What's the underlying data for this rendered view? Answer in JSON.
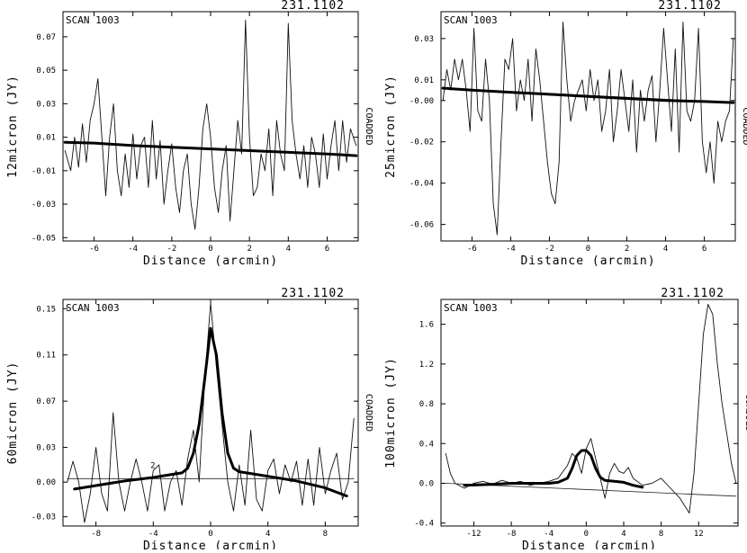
{
  "chart_data": [
    {
      "type": "line",
      "scan_label": "SCAN 1003",
      "id_label": "231.1102",
      "side_label": "COADDED",
      "xlabel": "Distance (arcmin)",
      "ylabel": "12micron (JY)",
      "xlim": [
        -7.6,
        7.6
      ],
      "ylim": [
        -0.052,
        0.085
      ],
      "xticks": [
        -6,
        -4,
        -2,
        0,
        2,
        4,
        6
      ],
      "yticks": [
        -0.05,
        -0.03,
        -0.01,
        0.01,
        0.03,
        0.05,
        0.07
      ],
      "xtick_labels": [
        "-6",
        "-4",
        "-2",
        "0",
        "2",
        "4",
        "6"
      ],
      "ytick_labels": [
        "-0.05",
        "-0.03",
        "-0.01",
        "0.01",
        "0.03",
        "0.05",
        "0.07"
      ],
      "series": [
        {
          "style": "thin",
          "x": [
            -7.5,
            -7.2,
            -7.0,
            -6.8,
            -6.6,
            -6.4,
            -6.2,
            -6.0,
            -5.8,
            -5.6,
            -5.4,
            -5.2,
            -5.0,
            -4.8,
            -4.6,
            -4.4,
            -4.2,
            -4.0,
            -3.8,
            -3.6,
            -3.4,
            -3.2,
            -3.0,
            -2.8,
            -2.6,
            -2.4,
            -2.2,
            -2.0,
            -1.8,
            -1.6,
            -1.4,
            -1.2,
            -1.0,
            -0.8,
            -0.6,
            -0.4,
            -0.2,
            0.0,
            0.2,
            0.4,
            0.6,
            0.8,
            1.0,
            1.2,
            1.4,
            1.6,
            1.8,
            2.0,
            2.2,
            2.4,
            2.6,
            2.8,
            3.0,
            3.2,
            3.4,
            3.6,
            3.8,
            4.0,
            4.2,
            4.4,
            4.6,
            4.8,
            5.0,
            5.2,
            5.4,
            5.6,
            5.8,
            6.0,
            6.2,
            6.4,
            6.6,
            6.8,
            7.0,
            7.2,
            7.5
          ],
          "y": [
            0.002,
            -0.01,
            0.01,
            -0.008,
            0.018,
            -0.005,
            0.02,
            0.03,
            0.045,
            0.01,
            -0.025,
            0.01,
            0.03,
            -0.01,
            -0.025,
            0.0,
            -0.02,
            0.012,
            -0.015,
            0.005,
            0.01,
            -0.02,
            0.02,
            -0.015,
            0.008,
            -0.03,
            -0.01,
            0.006,
            -0.02,
            -0.035,
            -0.01,
            0.0,
            -0.03,
            -0.045,
            -0.02,
            0.015,
            0.03,
            0.01,
            -0.02,
            -0.035,
            -0.01,
            0.005,
            -0.04,
            -0.01,
            0.02,
            0.0,
            0.08,
            0.01,
            -0.025,
            -0.02,
            0.0,
            -0.01,
            0.015,
            -0.025,
            0.02,
            0.0,
            -0.01,
            0.078,
            0.02,
            0.0,
            -0.015,
            0.005,
            -0.02,
            0.01,
            0.0,
            -0.02,
            0.012,
            -0.015,
            0.005,
            0.02,
            -0.01,
            0.02,
            -0.005,
            0.015,
            0.005
          ]
        },
        {
          "style": "line",
          "x": [
            -7.5,
            7.5
          ],
          "y": [
            0.007,
            -0.001
          ]
        },
        {
          "style": "thick",
          "x": [
            -7.5,
            -6,
            -4,
            -2,
            0,
            2,
            4,
            6,
            7.5
          ],
          "y": [
            0.007,
            0.0065,
            0.005,
            0.004,
            0.003,
            0.002,
            0.001,
            0.0,
            -0.001
          ]
        }
      ]
    },
    {
      "type": "line",
      "scan_label": "SCAN 1003",
      "id_label": "231.1102",
      "side_label": "COADDED",
      "xlabel": "Distance (arcmin)",
      "ylabel": "25micron (JY)",
      "xlim": [
        -7.6,
        7.6
      ],
      "ylim": [
        -0.068,
        0.043
      ],
      "xticks": [
        -6,
        -4,
        -2,
        0,
        2,
        4,
        6
      ],
      "yticks": [
        -0.06,
        -0.04,
        -0.02,
        0.0,
        0.01,
        0.03
      ],
      "xtick_labels": [
        "-6",
        "-4",
        "-2",
        "0",
        "2",
        "4",
        "6"
      ],
      "ytick_labels": [
        "-0.06",
        "-0.04",
        "-0.02",
        "-0.00",
        "0.01",
        "0.03"
      ],
      "series": [
        {
          "style": "thin",
          "x": [
            -7.5,
            -7.3,
            -7.1,
            -6.9,
            -6.7,
            -6.5,
            -6.3,
            -6.1,
            -5.9,
            -5.7,
            -5.5,
            -5.3,
            -5.1,
            -4.9,
            -4.7,
            -4.5,
            -4.3,
            -4.1,
            -3.9,
            -3.7,
            -3.5,
            -3.3,
            -3.1,
            -2.9,
            -2.7,
            -2.5,
            -2.3,
            -2.1,
            -1.9,
            -1.7,
            -1.5,
            -1.3,
            -1.1,
            -0.9,
            -0.7,
            -0.5,
            -0.3,
            -0.1,
            0.1,
            0.3,
            0.5,
            0.7,
            0.9,
            1.1,
            1.3,
            1.5,
            1.7,
            1.9,
            2.1,
            2.3,
            2.5,
            2.7,
            2.9,
            3.1,
            3.3,
            3.5,
            3.7,
            3.9,
            4.1,
            4.3,
            4.5,
            4.7,
            4.9,
            5.1,
            5.3,
            5.5,
            5.7,
            5.9,
            6.1,
            6.3,
            6.5,
            6.7,
            6.9,
            7.1,
            7.3,
            7.5
          ],
          "y": [
            0.0,
            0.015,
            0.005,
            0.02,
            0.01,
            0.02,
            0.005,
            -0.015,
            0.035,
            -0.005,
            -0.01,
            0.02,
            0.0,
            -0.05,
            -0.065,
            -0.02,
            0.02,
            0.015,
            0.03,
            -0.005,
            0.01,
            0.0,
            0.02,
            -0.01,
            0.025,
            0.01,
            -0.01,
            -0.03,
            -0.045,
            -0.05,
            -0.03,
            0.038,
            0.01,
            -0.01,
            0.0,
            0.005,
            0.01,
            -0.005,
            0.015,
            0.0,
            0.01,
            -0.015,
            -0.005,
            0.015,
            -0.02,
            -0.005,
            0.015,
            0.0,
            -0.015,
            0.01,
            -0.025,
            0.005,
            -0.01,
            0.005,
            0.012,
            -0.02,
            0.005,
            0.035,
            0.01,
            -0.015,
            0.025,
            -0.025,
            0.038,
            -0.005,
            -0.01,
            0.0,
            0.035,
            -0.02,
            -0.035,
            -0.02,
            -0.04,
            -0.01,
            -0.02,
            -0.01,
            -0.005,
            0.03
          ]
        },
        {
          "style": "line",
          "x": [
            -7.5,
            7.5
          ],
          "y": [
            0.006,
            -0.001
          ]
        },
        {
          "style": "thick",
          "x": [
            -7.5,
            -6,
            -4,
            -2,
            0,
            2,
            4,
            6,
            7.5
          ],
          "y": [
            0.006,
            0.005,
            0.004,
            0.003,
            0.002,
            0.001,
            0.0,
            -0.0005,
            -0.001
          ]
        }
      ]
    },
    {
      "type": "line",
      "scan_label": "SCAN 1003",
      "id_label": "231.1102",
      "side_label": "COADDED",
      "annotation": "2",
      "xlabel": "Distance (arcmin)",
      "ylabel": "60micron (JY)",
      "xlim": [
        -10.3,
        10.3
      ],
      "ylim": [
        -0.038,
        0.158
      ],
      "xticks": [
        -8,
        -4,
        0,
        4,
        8
      ],
      "yticks": [
        -0.03,
        0.0,
        0.03,
        0.07,
        0.11,
        0.15
      ],
      "xtick_labels": [
        "-8",
        "-4",
        "0",
        "4",
        "8"
      ],
      "ytick_labels": [
        "-0.03",
        "0.00",
        "0.03",
        "0.07",
        "0.11",
        "0.15"
      ],
      "series": [
        {
          "style": "thin",
          "x": [
            -10,
            -9.6,
            -9.2,
            -8.8,
            -8.4,
            -8.0,
            -7.6,
            -7.2,
            -6.8,
            -6.4,
            -6.0,
            -5.6,
            -5.2,
            -4.8,
            -4.4,
            -4.0,
            -3.6,
            -3.2,
            -2.8,
            -2.4,
            -2.0,
            -1.6,
            -1.2,
            -0.8,
            -0.4,
            0.0,
            0.4,
            0.8,
            1.2,
            1.6,
            2.0,
            2.4,
            2.8,
            3.2,
            3.6,
            4.0,
            4.4,
            4.8,
            5.2,
            5.6,
            6.0,
            6.4,
            6.8,
            7.2,
            7.6,
            8.0,
            8.4,
            8.8,
            9.2,
            9.6,
            10.0
          ],
          "y": [
            0.0,
            0.018,
            0.0,
            -0.035,
            -0.01,
            0.03,
            -0.01,
            -0.025,
            0.06,
            0.0,
            -0.025,
            0.0,
            0.02,
            0.0,
            -0.025,
            0.01,
            0.015,
            -0.025,
            0.0,
            0.01,
            -0.02,
            0.02,
            0.045,
            0.0,
            0.09,
            0.155,
            0.1,
            0.05,
            0.0,
            -0.025,
            0.015,
            -0.02,
            0.045,
            -0.015,
            -0.025,
            0.01,
            0.02,
            -0.01,
            0.015,
            0.0,
            0.018,
            -0.02,
            0.02,
            -0.02,
            0.03,
            -0.01,
            0.01,
            0.025,
            -0.015,
            0.0,
            0.055
          ]
        },
        {
          "style": "line",
          "x": [
            -10,
            10
          ],
          "y": [
            0.003,
            0.003
          ]
        },
        {
          "style": "thick",
          "x": [
            -9.5,
            -8,
            -6,
            -4,
            -3,
            -2,
            -1.6,
            -1.2,
            -0.8,
            -0.4,
            0,
            0.4,
            0.8,
            1.2,
            1.6,
            2,
            3,
            4,
            6,
            8,
            9.5
          ],
          "y": [
            -0.006,
            -0.003,
            0.001,
            0.004,
            0.006,
            0.008,
            0.012,
            0.025,
            0.05,
            0.09,
            0.133,
            0.11,
            0.06,
            0.025,
            0.012,
            0.009,
            0.007,
            0.005,
            0.001,
            -0.005,
            -0.012
          ]
        }
      ]
    },
    {
      "type": "line",
      "scan_label": "SCAN 1003",
      "id_label": "231.1102",
      "side_label": "COADDED",
      "xlabel": "Distance (arcmin)",
      "ylabel": "100micron (JY)",
      "xlim": [
        -15.5,
        16.2
      ],
      "ylim": [
        -0.43,
        1.85
      ],
      "xticks": [
        -12,
        -8,
        -4,
        0,
        4,
        8,
        12
      ],
      "yticks": [
        -0.4,
        0.0,
        0.4,
        0.8,
        1.2,
        1.6
      ],
      "xtick_labels": [
        "-12",
        "-8",
        "-4",
        "0",
        "4",
        "8",
        "12"
      ],
      "ytick_labels": [
        "-0.4",
        "0.0",
        "0.4",
        "0.8",
        "1.2",
        "1.6"
      ],
      "series": [
        {
          "style": "thin",
          "x": [
            -15,
            -14.5,
            -14,
            -13,
            -12,
            -11,
            -10,
            -9,
            -8,
            -7,
            -6,
            -5,
            -4,
            -3,
            -2,
            -1.5,
            -1,
            -0.5,
            0,
            0.5,
            1,
            1.5,
            2,
            2.5,
            3,
            3.5,
            4,
            4.5,
            5,
            6,
            7,
            8,
            9,
            10,
            11,
            11.5,
            12,
            12.5,
            13,
            13.5,
            14,
            14.5,
            15,
            15.5,
            16
          ],
          "y": [
            0.3,
            0.1,
            0.0,
            -0.05,
            0.0,
            0.02,
            -0.01,
            0.03,
            0.0,
            0.02,
            -0.02,
            0.0,
            0.02,
            0.05,
            0.18,
            0.3,
            0.25,
            0.1,
            0.35,
            0.45,
            0.25,
            0.05,
            -0.15,
            0.1,
            0.2,
            0.12,
            0.1,
            0.16,
            0.05,
            -0.02,
            0.0,
            0.05,
            -0.05,
            -0.15,
            -0.3,
            0.1,
            0.8,
            1.5,
            1.8,
            1.7,
            1.2,
            0.8,
            0.5,
            0.2,
            0.0
          ]
        },
        {
          "style": "line",
          "x": [
            -15,
            16
          ],
          "y": [
            0.0,
            -0.13
          ]
        },
        {
          "style": "thick",
          "x": [
            -13,
            -10,
            -8,
            -6,
            -4,
            -3,
            -2,
            -1.5,
            -1,
            -0.5,
            0,
            0.5,
            1,
            1.5,
            2,
            3,
            4,
            5,
            6
          ],
          "y": [
            -0.02,
            -0.01,
            0.0,
            0.0,
            0.0,
            0.01,
            0.05,
            0.15,
            0.28,
            0.33,
            0.33,
            0.28,
            0.15,
            0.06,
            0.03,
            0.02,
            0.01,
            -0.02,
            -0.04
          ]
        }
      ]
    }
  ]
}
